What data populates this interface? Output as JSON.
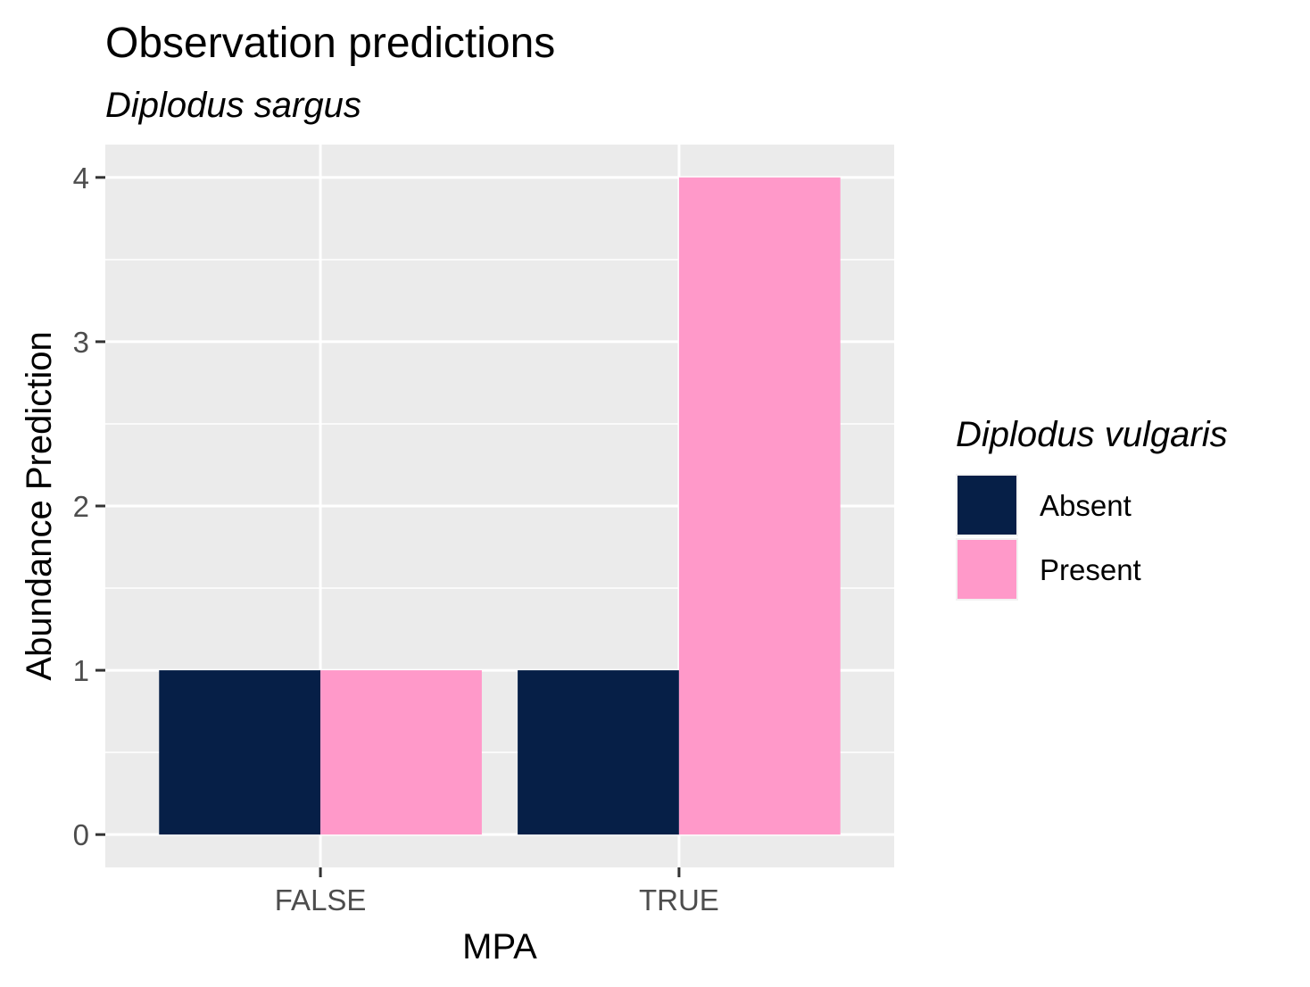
{
  "chart_data": {
    "type": "bar",
    "title": "Observation predictions",
    "subtitle": "Diplodus sargus",
    "xlabel": "MPA",
    "ylabel": "Abundance Prediction",
    "categories": [
      "FALSE",
      "TRUE"
    ],
    "series": [
      {
        "name": "Absent",
        "values": [
          1,
          1
        ],
        "color": "#061f47"
      },
      {
        "name": "Present",
        "values": [
          1,
          4
        ],
        "color": "#ff99c9"
      }
    ],
    "ylim": [
      -0.2,
      4.2
    ],
    "yticks": [
      0,
      1,
      2,
      3,
      4
    ],
    "grid": true,
    "legend": {
      "title": "Diplodus vulgaris",
      "position": "right"
    },
    "panel_background": "#ebebeb"
  }
}
